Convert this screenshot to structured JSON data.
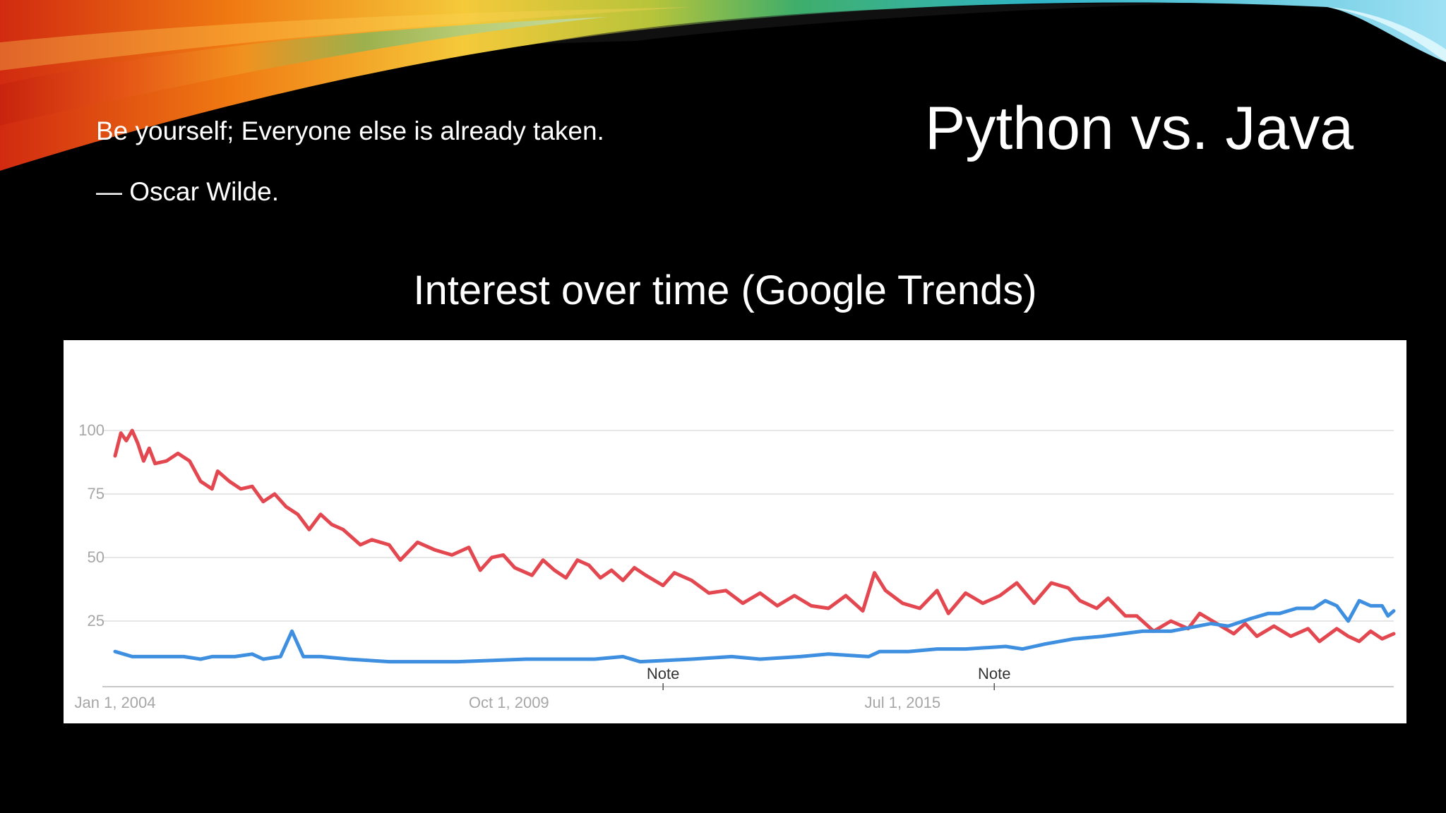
{
  "slide": {
    "quote": "Be yourself; Everyone else is already taken.",
    "author": "— Oscar Wilde.",
    "title": "Python vs. Java",
    "chart_heading": "Interest over time (Google Trends)"
  },
  "colors": {
    "background": "#000000",
    "text": "#ffffff",
    "panel": "#ffffff",
    "grid": "#e6e6e6",
    "axis_label": "#a6a6a6",
    "java": "#e34850",
    "python": "#3e8fe0"
  },
  "chart_data": {
    "type": "line",
    "title": "",
    "xlabel": "",
    "ylabel": "",
    "ylim": [
      0,
      100
    ],
    "yticks": [
      25,
      50,
      75,
      100
    ],
    "grid": true,
    "legend": "none",
    "x_range": [
      "2004-01-01",
      "2022-09-01"
    ],
    "x_ticks": [
      {
        "date": "2004-01-01",
        "label": "Jan 1, 2004"
      },
      {
        "date": "2009-10-01",
        "label": "Oct 1, 2009"
      },
      {
        "date": "2015-07-01",
        "label": "Jul 1, 2015"
      }
    ],
    "annotations": [
      {
        "date": "2012-01-01",
        "label": "Note"
      },
      {
        "date": "2016-11-01",
        "label": "Note"
      }
    ],
    "series": [
      {
        "color": "#e34850",
        "points": [
          [
            "2004-01-01",
            90
          ],
          [
            "2004-02-01",
            99
          ],
          [
            "2004-03-01",
            96
          ],
          [
            "2004-04-01",
            100
          ],
          [
            "2004-05-01",
            95
          ],
          [
            "2004-06-01",
            88
          ],
          [
            "2004-07-01",
            93
          ],
          [
            "2004-08-01",
            87
          ],
          [
            "2004-10-01",
            88
          ],
          [
            "2004-12-01",
            91
          ],
          [
            "2005-02-01",
            88
          ],
          [
            "2005-04-01",
            80
          ],
          [
            "2005-06-01",
            77
          ],
          [
            "2005-07-01",
            84
          ],
          [
            "2005-09-01",
            80
          ],
          [
            "2005-11-01",
            77
          ],
          [
            "2006-01-01",
            78
          ],
          [
            "2006-03-01",
            72
          ],
          [
            "2006-05-01",
            75
          ],
          [
            "2006-07-01",
            70
          ],
          [
            "2006-09-01",
            67
          ],
          [
            "2006-11-01",
            61
          ],
          [
            "2007-01-01",
            67
          ],
          [
            "2007-03-01",
            63
          ],
          [
            "2007-05-01",
            61
          ],
          [
            "2007-08-01",
            55
          ],
          [
            "2007-10-01",
            57
          ],
          [
            "2008-01-01",
            55
          ],
          [
            "2008-03-01",
            49
          ],
          [
            "2008-06-01",
            56
          ],
          [
            "2008-09-01",
            53
          ],
          [
            "2008-12-01",
            51
          ],
          [
            "2009-03-01",
            54
          ],
          [
            "2009-05-01",
            45
          ],
          [
            "2009-07-01",
            50
          ],
          [
            "2009-09-01",
            51
          ],
          [
            "2009-11-01",
            46
          ],
          [
            "2010-02-01",
            43
          ],
          [
            "2010-04-01",
            49
          ],
          [
            "2010-06-01",
            45
          ],
          [
            "2010-08-01",
            42
          ],
          [
            "2010-10-01",
            49
          ],
          [
            "2010-12-01",
            47
          ],
          [
            "2011-02-01",
            42
          ],
          [
            "2011-04-01",
            45
          ],
          [
            "2011-06-01",
            41
          ],
          [
            "2011-08-01",
            46
          ],
          [
            "2011-10-01",
            43
          ],
          [
            "2012-01-01",
            39
          ],
          [
            "2012-03-01",
            44
          ],
          [
            "2012-06-01",
            41
          ],
          [
            "2012-09-01",
            36
          ],
          [
            "2012-12-01",
            37
          ],
          [
            "2013-03-01",
            32
          ],
          [
            "2013-06-01",
            36
          ],
          [
            "2013-09-01",
            31
          ],
          [
            "2013-12-01",
            35
          ],
          [
            "2014-03-01",
            31
          ],
          [
            "2014-06-01",
            30
          ],
          [
            "2014-09-01",
            35
          ],
          [
            "2014-12-01",
            29
          ],
          [
            "2015-02-01",
            44
          ],
          [
            "2015-04-01",
            37
          ],
          [
            "2015-07-01",
            32
          ],
          [
            "2015-10-01",
            30
          ],
          [
            "2016-01-01",
            37
          ],
          [
            "2016-03-01",
            28
          ],
          [
            "2016-06-01",
            36
          ],
          [
            "2016-09-01",
            32
          ],
          [
            "2016-12-01",
            35
          ],
          [
            "2017-03-01",
            40
          ],
          [
            "2017-06-01",
            32
          ],
          [
            "2017-09-01",
            40
          ],
          [
            "2017-12-01",
            38
          ],
          [
            "2018-02-01",
            33
          ],
          [
            "2018-05-01",
            30
          ],
          [
            "2018-07-01",
            34
          ],
          [
            "2018-10-01",
            27
          ],
          [
            "2018-12-01",
            27
          ],
          [
            "2019-03-01",
            21
          ],
          [
            "2019-06-01",
            25
          ],
          [
            "2019-09-01",
            22
          ],
          [
            "2019-11-01",
            28
          ],
          [
            "2020-02-01",
            24
          ],
          [
            "2020-05-01",
            20
          ],
          [
            "2020-07-01",
            24
          ],
          [
            "2020-09-01",
            19
          ],
          [
            "2020-12-01",
            23
          ],
          [
            "2021-03-01",
            19
          ],
          [
            "2021-06-01",
            22
          ],
          [
            "2021-08-01",
            17
          ],
          [
            "2021-11-01",
            22
          ],
          [
            "2022-01-01",
            19
          ],
          [
            "2022-03-01",
            17
          ],
          [
            "2022-05-01",
            21
          ],
          [
            "2022-07-01",
            18
          ],
          [
            "2022-09-01",
            20
          ]
        ]
      },
      {
        "color": "#3e8fe0",
        "points": [
          [
            "2004-01-01",
            13
          ],
          [
            "2004-04-01",
            11
          ],
          [
            "2004-08-01",
            11
          ],
          [
            "2005-01-01",
            11
          ],
          [
            "2005-04-01",
            10
          ],
          [
            "2005-06-01",
            11
          ],
          [
            "2005-10-01",
            11
          ],
          [
            "2006-01-01",
            12
          ],
          [
            "2006-03-01",
            10
          ],
          [
            "2006-06-01",
            11
          ],
          [
            "2006-08-01",
            21
          ],
          [
            "2006-10-01",
            11
          ],
          [
            "2007-01-01",
            11
          ],
          [
            "2007-06-01",
            10
          ],
          [
            "2008-01-01",
            9
          ],
          [
            "2009-01-01",
            9
          ],
          [
            "2010-01-01",
            10
          ],
          [
            "2011-01-01",
            10
          ],
          [
            "2011-06-01",
            11
          ],
          [
            "2011-09-01",
            9
          ],
          [
            "2012-06-01",
            10
          ],
          [
            "2013-01-01",
            11
          ],
          [
            "2013-06-01",
            10
          ],
          [
            "2014-01-01",
            11
          ],
          [
            "2014-06-01",
            12
          ],
          [
            "2015-01-01",
            11
          ],
          [
            "2015-03-01",
            13
          ],
          [
            "2015-08-01",
            13
          ],
          [
            "2016-01-01",
            14
          ],
          [
            "2016-06-01",
            14
          ],
          [
            "2017-01-01",
            15
          ],
          [
            "2017-04-01",
            14
          ],
          [
            "2017-08-01",
            16
          ],
          [
            "2018-01-01",
            18
          ],
          [
            "2018-06-01",
            19
          ],
          [
            "2019-01-01",
            21
          ],
          [
            "2019-06-01",
            21
          ],
          [
            "2020-01-01",
            24
          ],
          [
            "2020-04-01",
            23
          ],
          [
            "2020-08-01",
            26
          ],
          [
            "2020-11-01",
            28
          ],
          [
            "2021-01-01",
            28
          ],
          [
            "2021-04-01",
            30
          ],
          [
            "2021-07-01",
            30
          ],
          [
            "2021-09-01",
            33
          ],
          [
            "2021-11-01",
            31
          ],
          [
            "2022-01-01",
            25
          ],
          [
            "2022-03-01",
            33
          ],
          [
            "2022-05-01",
            31
          ],
          [
            "2022-07-01",
            31
          ],
          [
            "2022-08-01",
            27
          ],
          [
            "2022-09-01",
            29
          ]
        ]
      }
    ]
  }
}
